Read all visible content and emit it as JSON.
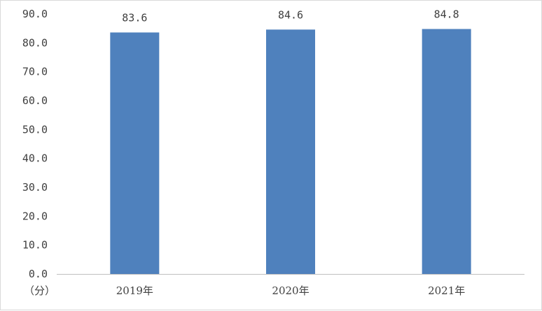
{
  "chart_data": {
    "type": "bar",
    "categories": [
      "2019年",
      "2020年",
      "2021年"
    ],
    "values": [
      83.6,
      84.6,
      84.8
    ],
    "data_labels": [
      "83.6",
      "84.6",
      "84.8"
    ],
    "y_ticks": [
      "0.0",
      "10.0",
      "20.0",
      "30.0",
      "40.0",
      "50.0",
      "60.0",
      "70.0",
      "80.0",
      "90.0"
    ],
    "ylim": [
      0,
      90
    ],
    "unit_label": "（分）",
    "bar_color": "#4F81BD",
    "grid": false,
    "legend": "none"
  }
}
